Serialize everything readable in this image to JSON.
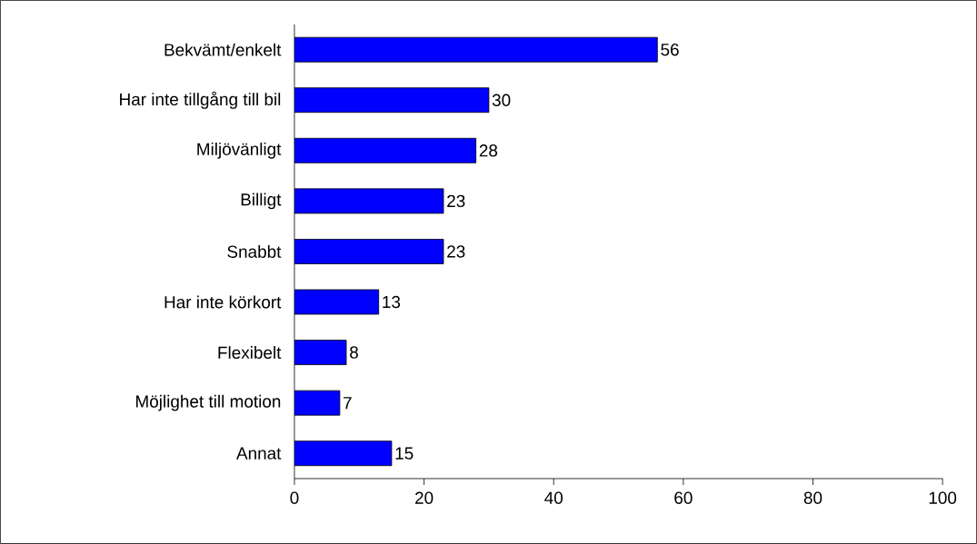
{
  "chart_data": {
    "type": "bar",
    "orientation": "horizontal",
    "categories": [
      "Bekvämt/enkelt",
      "Har inte tillgång till bil",
      "Miljövänligt",
      "Billigt",
      "Snabbt",
      "Har inte körkort",
      "Flexibelt",
      "Möjlighet till motion",
      "Annat"
    ],
    "values": [
      56,
      30,
      28,
      23,
      23,
      13,
      8,
      7,
      15
    ],
    "color": "#0000ff",
    "data_labels": true,
    "xlim": [
      0,
      100
    ],
    "xticks": [
      0,
      20,
      40,
      60,
      80,
      100
    ],
    "grid": false
  }
}
